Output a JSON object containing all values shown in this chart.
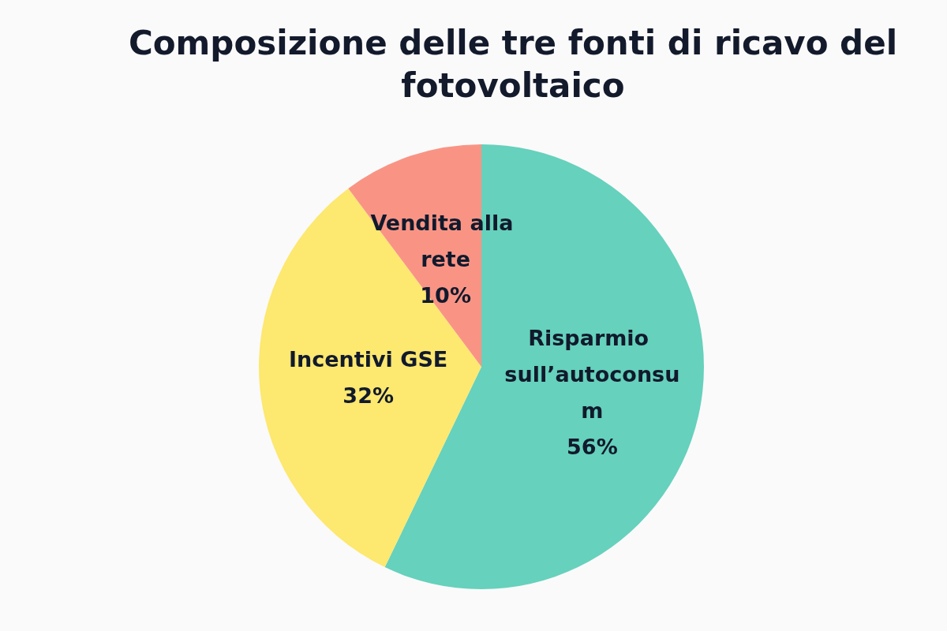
{
  "chart_data": {
    "type": "pie",
    "title": "Composizione delle tre fonti di ricavo del fotovoltaico",
    "categories": [
      "Risparmio sull’autoconsum",
      "Incentivi GSE",
      "Vendita alla rete"
    ],
    "values": [
      56,
      32,
      10
    ],
    "value_labels": [
      "56%",
      "32%",
      "10%"
    ],
    "colors": [
      "#66d1bc",
      "#fde870",
      "#f99485"
    ],
    "legend": false
  }
}
